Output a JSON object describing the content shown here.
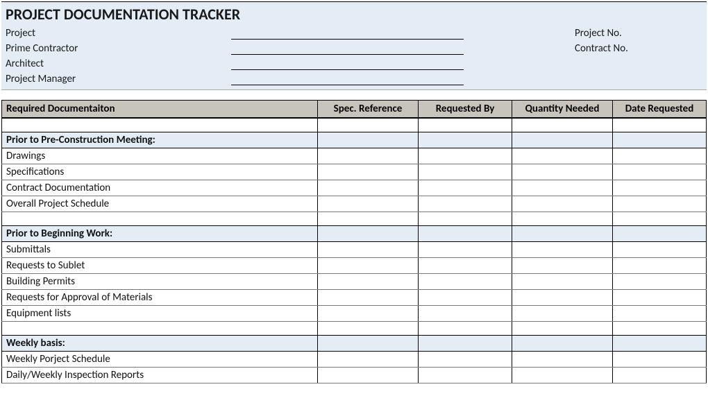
{
  "header": {
    "title": "PROJECT DOCUMENTATION TRACKER",
    "left_labels": [
      "Project",
      "Prime Contractor",
      "Architect",
      "Project Manager"
    ],
    "right_labels": [
      "Project No.",
      "Contract No."
    ],
    "colors": {
      "header_bg": "#e4edf5",
      "column_header_bg": "#c8c4bc"
    }
  },
  "table": {
    "columns": [
      "Required Documentaiton",
      "Spec. Reference",
      "Requested By",
      "Quantity Needed",
      "Date Requested"
    ],
    "sections": [
      {
        "heading": "Prior to Pre-Construction Meeting:",
        "items": [
          "Drawings",
          "Specifications",
          "Contract Documentation",
          "Overall Project Schedule"
        ]
      },
      {
        "heading": "Prior to Beginning Work:",
        "items": [
          "Submittals",
          "Requests to Sublet",
          "Building Permits",
          "Requests for Approval of Materials",
          "Equipment lists"
        ]
      },
      {
        "heading": "Weekly basis:",
        "items": [
          "Weekly Porject Schedule",
          "Daily/Weekly Inspection Reports"
        ]
      }
    ]
  }
}
